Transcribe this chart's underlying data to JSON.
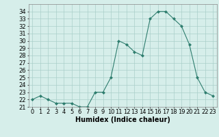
{
  "x": [
    0,
    1,
    2,
    3,
    4,
    5,
    6,
    7,
    8,
    9,
    10,
    11,
    12,
    13,
    14,
    15,
    16,
    17,
    18,
    19,
    20,
    21,
    22,
    23
  ],
  "y": [
    22,
    22.5,
    22,
    21.5,
    21.5,
    21.5,
    21,
    21,
    23,
    23,
    25,
    30,
    29.5,
    28.5,
    28,
    33,
    34,
    34,
    33,
    32,
    29.5,
    25,
    23,
    22.5
  ],
  "line_color": "#2e7d6e",
  "marker": "D",
  "marker_size": 2,
  "bg_color": "#d6eeea",
  "grid_color": "#aacfca",
  "xlabel": "Humidex (Indice chaleur)",
  "ylim": [
    21,
    35
  ],
  "xlim": [
    -0.5,
    23.5
  ],
  "yticks": [
    21,
    22,
    23,
    24,
    25,
    26,
    27,
    28,
    29,
    30,
    31,
    32,
    33,
    34
  ],
  "xticks": [
    0,
    1,
    2,
    3,
    4,
    5,
    6,
    7,
    8,
    9,
    10,
    11,
    12,
    13,
    14,
    15,
    16,
    17,
    18,
    19,
    20,
    21,
    22,
    23
  ],
  "xlabel_fontsize": 7,
  "tick_fontsize": 6
}
